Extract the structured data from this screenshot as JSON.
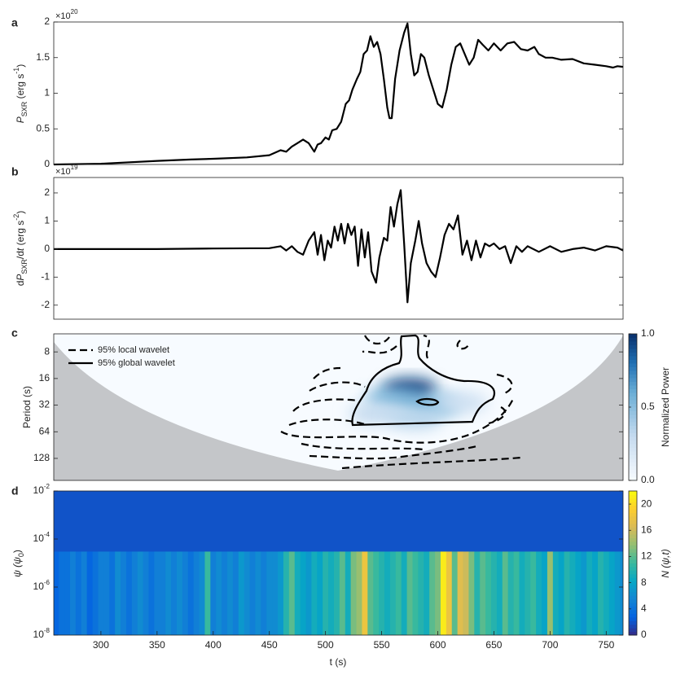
{
  "chart_data": [
    {
      "type": "line",
      "panel": "a",
      "exponent": [
        "×10",
        "20"
      ],
      "ylabel": [
        "P",
        "SXR",
        " (erg s",
        "-1",
        ")"
      ],
      "xlim": [
        258,
        765
      ],
      "ylim": [
        0,
        2
      ],
      "yticks": [
        0,
        0.5,
        1,
        1.5,
        2
      ],
      "color": "#000000",
      "x": [
        258,
        300,
        350,
        380,
        400,
        430,
        450,
        460,
        465,
        470,
        475,
        480,
        485,
        490,
        493,
        496,
        500,
        503,
        506,
        510,
        514,
        518,
        521,
        524,
        528,
        531,
        534,
        537,
        540,
        543,
        546,
        549,
        552,
        555,
        557,
        559,
        562,
        566,
        570,
        573,
        576,
        579,
        582,
        585,
        588,
        592,
        596,
        600,
        604,
        608,
        612,
        616,
        620,
        624,
        628,
        632,
        636,
        640,
        645,
        650,
        656,
        662,
        668,
        674,
        680,
        686,
        690,
        696,
        702,
        710,
        720,
        730,
        740,
        750,
        756,
        760,
        765
      ],
      "values": [
        0,
        0.01,
        0.05,
        0.07,
        0.08,
        0.1,
        0.13,
        0.2,
        0.18,
        0.25,
        0.3,
        0.35,
        0.3,
        0.18,
        0.28,
        0.3,
        0.38,
        0.35,
        0.48,
        0.5,
        0.6,
        0.85,
        0.9,
        1.05,
        1.2,
        1.3,
        1.55,
        1.6,
        1.8,
        1.65,
        1.72,
        1.55,
        1.2,
        0.8,
        0.65,
        0.65,
        1.2,
        1.6,
        1.85,
        1.98,
        1.55,
        1.25,
        1.3,
        1.55,
        1.5,
        1.25,
        1.05,
        0.85,
        0.8,
        1.05,
        1.4,
        1.65,
        1.7,
        1.55,
        1.4,
        1.5,
        1.75,
        1.68,
        1.6,
        1.7,
        1.6,
        1.7,
        1.72,
        1.62,
        1.6,
        1.65,
        1.55,
        1.5,
        1.5,
        1.47,
        1.48,
        1.42,
        1.4,
        1.38,
        1.36,
        1.38,
        1.37
      ]
    },
    {
      "type": "line",
      "panel": "b",
      "exponent": [
        "×10",
        "19"
      ],
      "ylabel": [
        "d",
        "P",
        "SXR",
        "/d",
        "t",
        " (erg s",
        "-2",
        ")"
      ],
      "xlim": [
        258,
        765
      ],
      "ylim": [
        -2.5,
        2.55
      ],
      "yticks": [
        -2,
        -1,
        0,
        1,
        2
      ],
      "color": "#000000",
      "x": [
        258,
        350,
        400,
        450,
        460,
        465,
        470,
        475,
        480,
        485,
        490,
        493,
        496,
        499,
        502,
        505,
        508,
        511,
        514,
        517,
        520,
        523,
        526,
        529,
        532,
        535,
        538,
        541,
        545,
        548,
        552,
        555,
        558,
        561,
        564,
        567,
        570,
        573,
        576,
        580,
        583,
        586,
        590,
        594,
        598,
        602,
        606,
        610,
        614,
        618,
        622,
        626,
        630,
        634,
        638,
        642,
        646,
        650,
        655,
        660,
        665,
        670,
        675,
        680,
        690,
        700,
        710,
        720,
        730,
        740,
        750,
        760,
        765
      ],
      "values": [
        0,
        0,
        0.02,
        0.03,
        0.1,
        -0.05,
        0.1,
        -0.1,
        -0.2,
        0.3,
        0.6,
        -0.2,
        0.5,
        -0.4,
        0.3,
        0.05,
        0.8,
        0.3,
        0.9,
        0.2,
        0.9,
        0.5,
        0.8,
        -0.6,
        0.7,
        -0.3,
        0.6,
        -0.8,
        -1.2,
        -0.3,
        0.4,
        0.3,
        1.5,
        0.8,
        1.6,
        2.1,
        0.2,
        -1.9,
        -0.5,
        0.3,
        1.0,
        0.2,
        -0.5,
        -0.8,
        -1.0,
        -0.3,
        0.5,
        0.9,
        0.7,
        1.2,
        -0.2,
        0.3,
        -0.4,
        0.3,
        -0.3,
        0.2,
        0.1,
        0.2,
        0,
        0.1,
        -0.5,
        0.1,
        -0.1,
        0.1,
        -0.1,
        0.1,
        -0.1,
        0,
        0.05,
        -0.05,
        0.1,
        0.05,
        -0.05
      ]
    },
    {
      "type": "wavelet",
      "panel": "c",
      "ylabel": "Period (s)",
      "xlim": [
        258,
        765
      ],
      "ylim": [
        5,
        227
      ],
      "log": true,
      "y_reversed": true,
      "yticks": [
        8,
        16,
        32,
        64,
        128
      ],
      "legend": [
        "95% local wavelet",
        "95% global wavelet"
      ],
      "colormap": "Blues",
      "colorbar": {
        "label": "Normalized Power",
        "clim": [
          0,
          1
        ],
        "ticks": [
          {
            "value": 0,
            "label": "0.0"
          },
          0.5,
          {
            "value": 1,
            "label": "1.0"
          }
        ]
      },
      "peaks": [
        {
          "x": 575,
          "period": 21,
          "power": 0.95
        },
        {
          "x": 560,
          "period": 27,
          "power": 0.55
        },
        {
          "x": 595,
          "period": 32,
          "power": 0.6
        },
        {
          "x": 545,
          "period": 40,
          "power": 0.3
        },
        {
          "x": 580,
          "period": 45,
          "power": 0.35
        },
        {
          "x": 620,
          "period": 30,
          "power": 0.25
        }
      ]
    },
    {
      "type": "heatmap",
      "panel": "d",
      "ylabel": [
        "ψ (ψ",
        "0",
        ")"
      ],
      "xlabel": "t (s)",
      "xlim": [
        258,
        765
      ],
      "ylim": [
        1e-08,
        0.01
      ],
      "log": true,
      "xticks": [
        300,
        350,
        400,
        450,
        500,
        550,
        600,
        650,
        700,
        750
      ],
      "yticks": [
        {
          "value": 1e-08,
          "label": [
            "10",
            "-8"
          ]
        },
        {
          "value": 1e-06,
          "label": [
            "10",
            "-6"
          ]
        },
        {
          "value": 0.0001,
          "label": [
            "10",
            "-4"
          ]
        },
        {
          "value": 0.01,
          "label": [
            "10",
            "-2"
          ]
        }
      ],
      "colormap": "parula",
      "colorbar": {
        "label": "N (ψ,t)",
        "clim": [
          0,
          22
        ],
        "ticks": [
          0,
          4,
          8,
          12,
          16,
          20
        ]
      },
      "background": 2,
      "top_psi": 3e-05,
      "bin_width": 5,
      "x": [
        260,
        265,
        270,
        275,
        280,
        285,
        290,
        295,
        300,
        305,
        310,
        315,
        320,
        325,
        330,
        335,
        340,
        345,
        350,
        355,
        360,
        365,
        370,
        375,
        380,
        385,
        390,
        395,
        400,
        405,
        410,
        415,
        420,
        425,
        430,
        435,
        440,
        445,
        450,
        455,
        460,
        465,
        470,
        475,
        480,
        485,
        490,
        495,
        500,
        505,
        510,
        515,
        520,
        525,
        530,
        535,
        540,
        545,
        550,
        555,
        560,
        565,
        570,
        575,
        580,
        585,
        590,
        595,
        600,
        605,
        610,
        615,
        620,
        625,
        630,
        635,
        640,
        645,
        650,
        655,
        660,
        665,
        670,
        675,
        680,
        685,
        690,
        695,
        700,
        705,
        710,
        715,
        720,
        725,
        730,
        735,
        740,
        745,
        750,
        755,
        760,
        765
      ],
      "values": [
        3,
        4,
        4,
        5,
        4,
        5,
        3,
        4,
        5,
        5,
        4,
        6,
        5,
        4,
        5,
        6,
        5,
        4,
        5,
        5,
        6,
        5,
        6,
        5,
        4,
        5,
        6,
        11,
        5,
        6,
        5,
        6,
        5,
        7,
        6,
        5,
        6,
        5,
        6,
        6,
        7,
        10,
        12,
        9,
        8,
        7,
        9,
        8,
        10,
        9,
        10,
        12,
        9,
        13,
        14,
        18,
        12,
        11,
        10,
        9,
        10,
        11,
        9,
        12,
        11,
        10,
        9,
        12,
        13,
        21,
        18,
        12,
        17,
        16,
        13,
        10,
        12,
        11,
        10,
        9,
        12,
        10,
        11,
        9,
        10,
        11,
        9,
        8,
        14,
        9,
        8,
        10,
        9,
        8,
        7,
        9,
        8,
        10,
        9,
        8,
        7,
        6
      ]
    }
  ]
}
